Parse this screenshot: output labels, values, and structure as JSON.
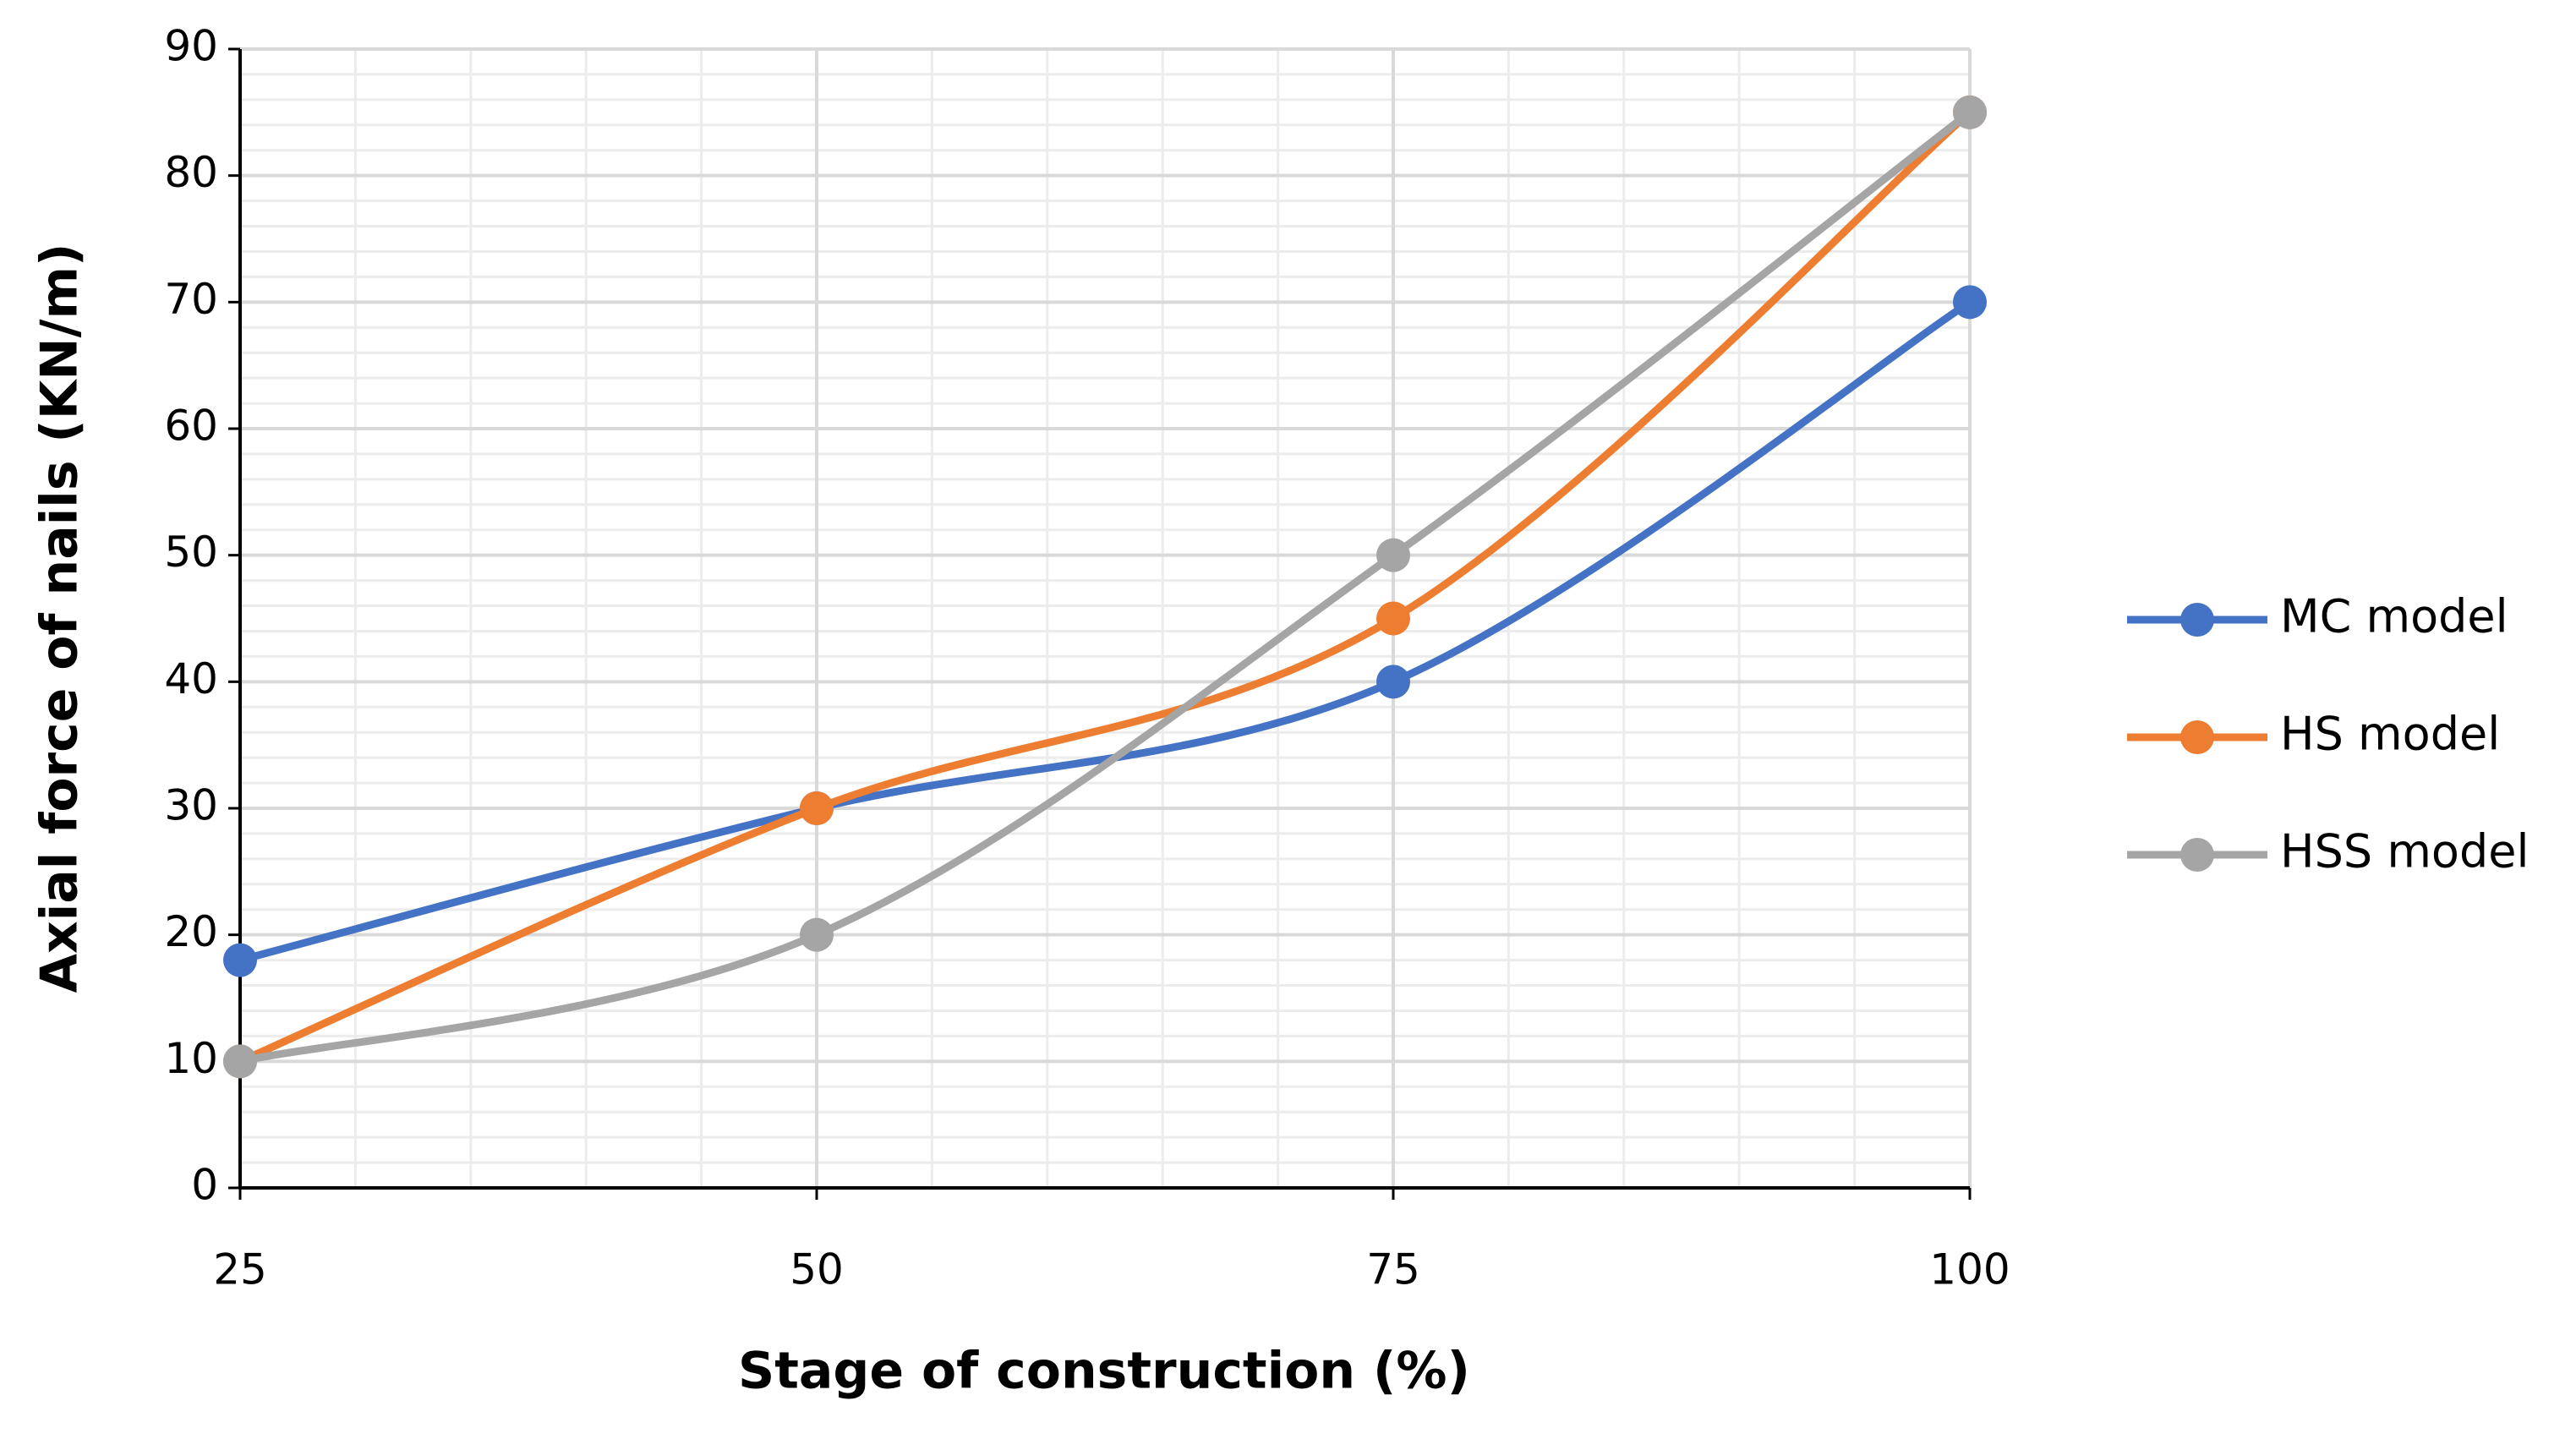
{
  "chart_data": {
    "type": "line",
    "smooth": true,
    "x_label": "Stage of construction (%)",
    "y_label": "Axial force of nails (KN/m)",
    "x": [
      25,
      50,
      75,
      100
    ],
    "series": [
      {
        "name": "MC model",
        "color": "#4472c4",
        "values": [
          18,
          30,
          40,
          70
        ]
      },
      {
        "name": "HS model",
        "color": "#ed7d31",
        "values": [
          10,
          30,
          45,
          85
        ]
      },
      {
        "name": "HSS model",
        "color": "#a5a5a5",
        "values": [
          10,
          20,
          50,
          85
        ]
      }
    ],
    "xlim": [
      25,
      100
    ],
    "xticks": [
      25,
      50,
      75,
      100
    ],
    "ylim": [
      0,
      90
    ],
    "yticks": [
      0,
      10,
      20,
      30,
      40,
      50,
      60,
      70,
      80,
      90
    ],
    "grid": true,
    "minor_grid": true,
    "legend": "right"
  }
}
